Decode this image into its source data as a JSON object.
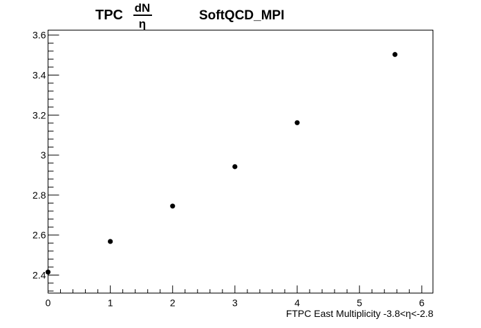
{
  "chart_data": {
    "type": "scatter",
    "title": {
      "prefix": "TPC",
      "fraction_numerator": "dN",
      "fraction_denominator": "η",
      "name": "SoftQCD_MPI"
    },
    "xlabel": "FTPC East Multiplicity -3.8<η<-2.8",
    "ylabel": "",
    "xlim": [
      0,
      6.18
    ],
    "ylim": [
      2.31,
      3.625
    ],
    "x_ticks": [
      0,
      1,
      2,
      3,
      4,
      5,
      6
    ],
    "x_tick_labels": [
      "0",
      "1",
      "2",
      "3",
      "4",
      "5",
      "6"
    ],
    "y_ticks": [
      2.4,
      2.6,
      2.8,
      3.0,
      3.2,
      3.4,
      3.6
    ],
    "y_tick_labels": [
      "2.4",
      "2.6",
      "2.8",
      "3",
      "3.2",
      "3.4",
      "3.6"
    ],
    "grid": false,
    "series": [
      {
        "x": [
          0,
          1,
          2,
          3,
          4,
          5.57
        ],
        "y": [
          2.415,
          2.568,
          2.745,
          2.942,
          3.162,
          3.503
        ]
      }
    ],
    "colors": {
      "marker": "#000000",
      "axis": "#000000",
      "background": "#ffffff"
    }
  }
}
